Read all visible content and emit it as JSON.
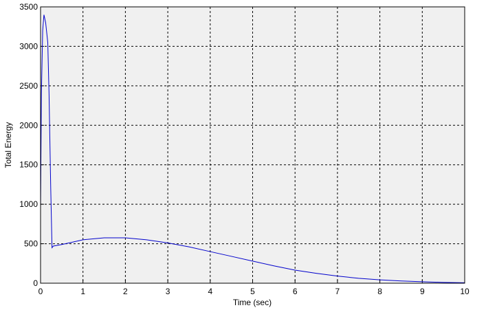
{
  "chart_data": {
    "type": "line",
    "xlabel": "Time (sec)",
    "ylabel": "Total Energy",
    "x": [
      0,
      0.02,
      0.05,
      0.08,
      0.12,
      0.17,
      0.2,
      0.24,
      0.27,
      0.3,
      0.5,
      1,
      1.5,
      2,
      2.5,
      3,
      3.5,
      4,
      4.5,
      5,
      5.5,
      6,
      6.5,
      7,
      7.5,
      8,
      8.5,
      9,
      9.5,
      10
    ],
    "series": [
      {
        "color": "#0000cc",
        "values": [
          950,
          2400,
          3200,
          3400,
          3300,
          3050,
          2400,
          1200,
          450,
          470,
          490,
          550,
          575,
          575,
          550,
          510,
          460,
          400,
          340,
          280,
          220,
          165,
          125,
          90,
          62,
          42,
          28,
          18,
          10,
          5
        ]
      }
    ],
    "xlim": [
      0,
      10
    ],
    "xticks": [
      0,
      1,
      2,
      3,
      4,
      5,
      6,
      7,
      8,
      9,
      10
    ],
    "ylim": [
      0,
      3500
    ],
    "yticks": [
      0,
      500,
      1000,
      1500,
      2000,
      2500,
      3000,
      3500
    ],
    "grid": true
  }
}
